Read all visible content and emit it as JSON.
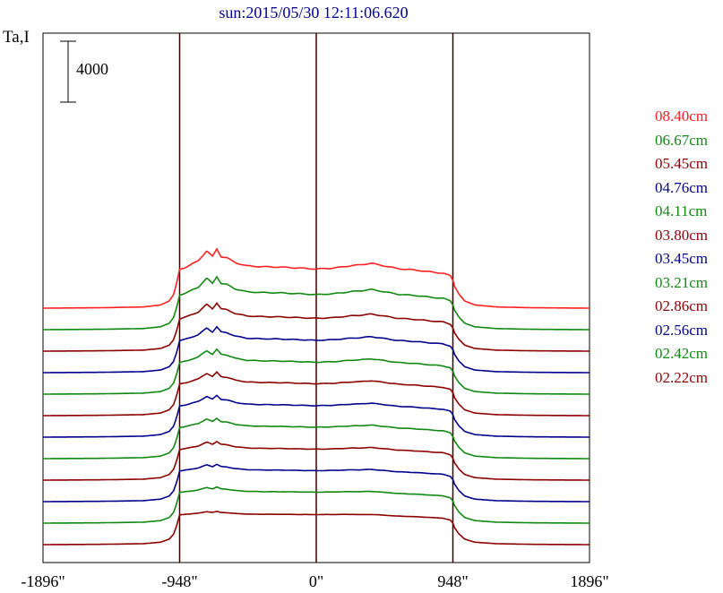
{
  "chart_data": {
    "type": "line",
    "title": "sun:2015/05/30 12:11:06.620",
    "ylabel": "Ta,I",
    "xlabel": "",
    "x_ticks": [
      "-1896\"",
      "-948\"",
      "0\"",
      "948\"",
      "1896\""
    ],
    "x_tick_values": [
      -1896,
      -948,
      0,
      948,
      1896
    ],
    "xlim": [
      -1896,
      1896
    ],
    "vertical_lines_at": [
      -948,
      0,
      948
    ],
    "scale_bar_label": "4000",
    "scale_bar_value": 4000,
    "offset_between_traces": 2400,
    "colors": {
      "red": "#ff2020",
      "green": "#118811",
      "maroon": "#8b0000",
      "navy": "#00008b"
    },
    "profile_points": {
      "x": [
        -1896,
        -1500,
        -1200,
        -1080,
        -1020,
        -990,
        -970,
        -955,
        -948,
        -900,
        -820,
        -760,
        -720,
        -690,
        -660,
        -620,
        -560,
        -480,
        -380,
        -250,
        -120,
        0,
        120,
        250,
        300,
        380,
        420,
        470,
        560,
        700,
        800,
        880,
        930,
        948,
        960,
        990,
        1030,
        1100,
        1250,
        1500,
        1896
      ],
      "sun_shape": [
        0,
        0.01,
        0.03,
        0.08,
        0.18,
        0.34,
        0.6,
        0.85,
        0.97,
        0.985,
        0.99,
        1.0,
        1.0,
        1.0,
        1.0,
        0.995,
        0.99,
        0.985,
        0.98,
        0.98,
        0.98,
        0.98,
        0.98,
        0.97,
        0.96,
        0.955,
        0.95,
        0.94,
        0.92,
        0.9,
        0.88,
        0.86,
        0.8,
        0.7,
        0.55,
        0.35,
        0.18,
        0.08,
        0.03,
        0.01,
        0
      ],
      "bumps": [
        0,
        0,
        0,
        0,
        0,
        0,
        0,
        0,
        0,
        0.1,
        0.4,
        0.9,
        0.6,
        1.0,
        0.6,
        0.55,
        0.3,
        0.15,
        0.12,
        0.1,
        0.05,
        0.0,
        0.05,
        0.2,
        0.25,
        0.35,
        0.3,
        0.25,
        0.15,
        0.1,
        0.05,
        0.03,
        0.02,
        0,
        0,
        0,
        0,
        0,
        0,
        0,
        0
      ]
    },
    "series": [
      {
        "name": "08.40cm",
        "color": "#ff2020",
        "disk_amplitude": 8600,
        "bump_amplitude": 3000
      },
      {
        "name": "06.67cm",
        "color": "#118811",
        "disk_amplitude": 7700,
        "bump_amplitude": 2700
      },
      {
        "name": "05.45cm",
        "color": "#8b0000",
        "disk_amplitude": 7200,
        "bump_amplitude": 2300
      },
      {
        "name": "04.76cm",
        "color": "#00008b",
        "disk_amplitude": 7100,
        "bump_amplitude": 2000
      },
      {
        "name": "04.11cm",
        "color": "#118811",
        "disk_amplitude": 7000,
        "bump_amplitude": 1900
      },
      {
        "name": "03.80cm",
        "color": "#8b0000",
        "disk_amplitude": 7000,
        "bump_amplitude": 1700
      },
      {
        "name": "03.45cm",
        "color": "#00008b",
        "disk_amplitude": 6900,
        "bump_amplitude": 1500
      },
      {
        "name": "03.21cm",
        "color": "#118811",
        "disk_amplitude": 6900,
        "bump_amplitude": 1300
      },
      {
        "name": "02.86cm",
        "color": "#8b0000",
        "disk_amplitude": 6800,
        "bump_amplitude": 1100
      },
      {
        "name": "02.56cm",
        "color": "#00008b",
        "disk_amplitude": 6800,
        "bump_amplitude": 900
      },
      {
        "name": "02.42cm",
        "color": "#118811",
        "disk_amplitude": 6800,
        "bump_amplitude": 700
      },
      {
        "name": "02.22cm",
        "color": "#8b0000",
        "disk_amplitude": 6600,
        "bump_amplitude": 400
      }
    ]
  }
}
